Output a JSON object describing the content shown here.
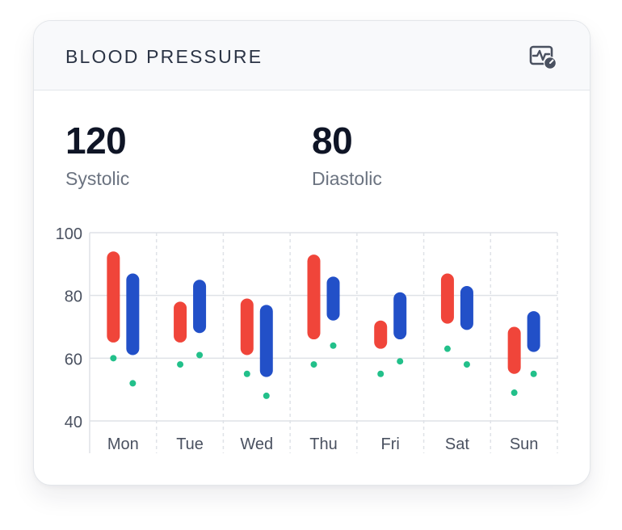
{
  "card": {
    "title": "BLOOD PRESSURE"
  },
  "summary": {
    "systolic_value": "120",
    "systolic_label": "Systolic",
    "diastolic_value": "80",
    "diastolic_label": "Diastolic"
  },
  "icons": {
    "header": "heart-monitor-gauge-icon"
  },
  "colors": {
    "systolic": "#f0453a",
    "diastolic": "#2250c8",
    "pulse": "#22c08a",
    "grid": "#dfe2e7",
    "axis_text": "#4a5160"
  },
  "chart_data": {
    "type": "range-bar",
    "title": "",
    "xlabel": "",
    "ylabel": "",
    "ylim": [
      40,
      100
    ],
    "yticks": [
      40,
      60,
      80,
      100
    ],
    "categories": [
      "Mon",
      "Tue",
      "Wed",
      "Thu",
      "Fri",
      "Sat",
      "Sun"
    ],
    "series": [
      {
        "key": "systolic",
        "ranges": [
          [
            65,
            94
          ],
          [
            65,
            78
          ],
          [
            61,
            79
          ],
          [
            66,
            93
          ],
          [
            63,
            72
          ],
          [
            71,
            87
          ],
          [
            55,
            70
          ]
        ]
      },
      {
        "key": "diastolic",
        "ranges": [
          [
            61,
            87
          ],
          [
            68,
            85
          ],
          [
            54,
            77
          ],
          [
            72,
            86
          ],
          [
            66,
            81
          ],
          [
            69,
            83
          ],
          [
            62,
            75
          ]
        ]
      }
    ],
    "points": [
      {
        "key": "pulse",
        "values": [
          [
            60,
            52
          ],
          [
            58,
            61
          ],
          [
            55,
            48
          ],
          [
            58,
            64
          ],
          [
            55,
            59
          ],
          [
            63,
            58
          ],
          [
            49,
            55
          ]
        ]
      }
    ],
    "grid": true,
    "legend": "none"
  }
}
